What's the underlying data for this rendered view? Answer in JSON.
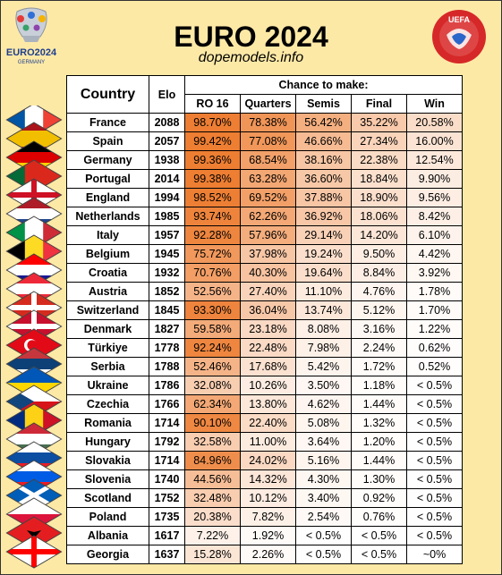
{
  "header": {
    "title": "EURO 2024",
    "site": "dopemodels.info",
    "logo_text": "EURO2024",
    "logo_sub": "GERMANY",
    "uefa_text": "UEFA"
  },
  "table": {
    "col_country": "Country",
    "col_elo": "Elo",
    "group_header": "Chance to make:",
    "stage_headers": [
      "RO 16",
      "Quarters",
      "Semis",
      "Final",
      "Win"
    ]
  },
  "colors": {
    "background": "#fde9a6",
    "heat_high": "#ed7d31",
    "heat_low": "#ffffff"
  },
  "chart_data": {
    "type": "table",
    "title": "EURO 2024",
    "columns": [
      "Country",
      "Elo",
      "RO 16",
      "Quarters",
      "Semis",
      "Final",
      "Win"
    ],
    "rows": [
      {
        "country": "France",
        "flag": "france-flag-icon",
        "elo": "2088",
        "values": [
          "98.70%",
          "78.38%",
          "56.42%",
          "35.22%",
          "20.58%"
        ],
        "numeric": [
          98.7,
          78.38,
          56.42,
          35.22,
          20.58
        ]
      },
      {
        "country": "Spain",
        "flag": "spain-flag-icon",
        "elo": "2057",
        "values": [
          "99.42%",
          "77.08%",
          "46.66%",
          "27.34%",
          "16.00%"
        ],
        "numeric": [
          99.42,
          77.08,
          46.66,
          27.34,
          16.0
        ]
      },
      {
        "country": "Germany",
        "flag": "germany-flag-icon",
        "elo": "1938",
        "values": [
          "99.36%",
          "68.54%",
          "38.16%",
          "22.38%",
          "12.54%"
        ],
        "numeric": [
          99.36,
          68.54,
          38.16,
          22.38,
          12.54
        ]
      },
      {
        "country": "Portugal",
        "flag": "portugal-flag-icon",
        "elo": "2014",
        "values": [
          "99.38%",
          "63.28%",
          "36.60%",
          "18.84%",
          "9.90%"
        ],
        "numeric": [
          99.38,
          63.28,
          36.6,
          18.84,
          9.9
        ]
      },
      {
        "country": "England",
        "flag": "england-flag-icon",
        "elo": "1994",
        "values": [
          "98.52%",
          "69.52%",
          "37.88%",
          "18.90%",
          "9.56%"
        ],
        "numeric": [
          98.52,
          69.52,
          37.88,
          18.9,
          9.56
        ]
      },
      {
        "country": "Netherlands",
        "flag": "netherlands-flag-icon",
        "elo": "1985",
        "values": [
          "93.74%",
          "62.26%",
          "36.92%",
          "18.06%",
          "8.42%"
        ],
        "numeric": [
          93.74,
          62.26,
          36.92,
          18.06,
          8.42
        ]
      },
      {
        "country": "Italy",
        "flag": "italy-flag-icon",
        "elo": "1957",
        "values": [
          "92.28%",
          "57.96%",
          "29.14%",
          "14.20%",
          "6.10%"
        ],
        "numeric": [
          92.28,
          57.96,
          29.14,
          14.2,
          6.1
        ]
      },
      {
        "country": "Belgium",
        "flag": "belgium-flag-icon",
        "elo": "1945",
        "values": [
          "75.72%",
          "37.98%",
          "19.24%",
          "9.50%",
          "4.42%"
        ],
        "numeric": [
          75.72,
          37.98,
          19.24,
          9.5,
          4.42
        ]
      },
      {
        "country": "Croatia",
        "flag": "croatia-flag-icon",
        "elo": "1932",
        "values": [
          "70.76%",
          "40.30%",
          "19.64%",
          "8.84%",
          "3.92%"
        ],
        "numeric": [
          70.76,
          40.3,
          19.64,
          8.84,
          3.92
        ]
      },
      {
        "country": "Austria",
        "flag": "austria-flag-icon",
        "elo": "1852",
        "values": [
          "52.56%",
          "27.40%",
          "11.10%",
          "4.76%",
          "1.78%"
        ],
        "numeric": [
          52.56,
          27.4,
          11.1,
          4.76,
          1.78
        ]
      },
      {
        "country": "Switzerland",
        "flag": "switzerland-flag-icon",
        "elo": "1845",
        "values": [
          "93.30%",
          "36.04%",
          "13.74%",
          "5.12%",
          "1.70%"
        ],
        "numeric": [
          93.3,
          36.04,
          13.74,
          5.12,
          1.7
        ]
      },
      {
        "country": "Denmark",
        "flag": "denmark-flag-icon",
        "elo": "1827",
        "values": [
          "59.58%",
          "23.18%",
          "8.08%",
          "3.16%",
          "1.22%"
        ],
        "numeric": [
          59.58,
          23.18,
          8.08,
          3.16,
          1.22
        ]
      },
      {
        "country": "Türkiye",
        "flag": "turkiye-flag-icon",
        "elo": "1778",
        "values": [
          "92.24%",
          "22.48%",
          "7.98%",
          "2.24%",
          "0.62%"
        ],
        "numeric": [
          92.24,
          22.48,
          7.98,
          2.24,
          0.62
        ]
      },
      {
        "country": "Serbia",
        "flag": "serbia-flag-icon",
        "elo": "1788",
        "values": [
          "52.46%",
          "17.68%",
          "5.42%",
          "1.72%",
          "0.52%"
        ],
        "numeric": [
          52.46,
          17.68,
          5.42,
          1.72,
          0.52
        ]
      },
      {
        "country": "Ukraine",
        "flag": "ukraine-flag-icon",
        "elo": "1786",
        "values": [
          "32.08%",
          "10.26%",
          "3.50%",
          "1.18%",
          "< 0.5%"
        ],
        "numeric": [
          32.08,
          10.26,
          3.5,
          1.18,
          0.3
        ]
      },
      {
        "country": "Czechia",
        "flag": "czechia-flag-icon",
        "elo": "1766",
        "values": [
          "62.34%",
          "13.80%",
          "4.62%",
          "1.44%",
          "< 0.5%"
        ],
        "numeric": [
          62.34,
          13.8,
          4.62,
          1.44,
          0.3
        ]
      },
      {
        "country": "Romania",
        "flag": "romania-flag-icon",
        "elo": "1714",
        "values": [
          "90.10%",
          "22.40%",
          "5.08%",
          "1.32%",
          "< 0.5%"
        ],
        "numeric": [
          90.1,
          22.4,
          5.08,
          1.32,
          0.3
        ]
      },
      {
        "country": "Hungary",
        "flag": "hungary-flag-icon",
        "elo": "1792",
        "values": [
          "32.58%",
          "11.00%",
          "3.64%",
          "1.20%",
          "< 0.5%"
        ],
        "numeric": [
          32.58,
          11.0,
          3.64,
          1.2,
          0.3
        ]
      },
      {
        "country": "Slovakia",
        "flag": "slovakia-flag-icon",
        "elo": "1714",
        "values": [
          "84.96%",
          "24.02%",
          "5.16%",
          "1.44%",
          "< 0.5%"
        ],
        "numeric": [
          84.96,
          24.02,
          5.16,
          1.44,
          0.3
        ]
      },
      {
        "country": "Slovenia",
        "flag": "slovenia-flag-icon",
        "elo": "1740",
        "values": [
          "44.56%",
          "14.32%",
          "4.30%",
          "1.30%",
          "< 0.5%"
        ],
        "numeric": [
          44.56,
          14.32,
          4.3,
          1.3,
          0.3
        ]
      },
      {
        "country": "Scotland",
        "flag": "scotland-flag-icon",
        "elo": "1752",
        "values": [
          "32.48%",
          "10.12%",
          "3.40%",
          "0.92%",
          "< 0.5%"
        ],
        "numeric": [
          32.48,
          10.12,
          3.4,
          0.92,
          0.3
        ]
      },
      {
        "country": "Poland",
        "flag": "poland-flag-icon",
        "elo": "1735",
        "values": [
          "20.38%",
          "7.82%",
          "2.54%",
          "0.76%",
          "< 0.5%"
        ],
        "numeric": [
          20.38,
          7.82,
          2.54,
          0.76,
          0.3
        ]
      },
      {
        "country": "Albania",
        "flag": "albania-flag-icon",
        "elo": "1617",
        "values": [
          "7.22%",
          "1.92%",
          "< 0.5%",
          "< 0.5%",
          "< 0.5%"
        ],
        "numeric": [
          7.22,
          1.92,
          0.3,
          0.3,
          0.3
        ]
      },
      {
        "country": "Georgia",
        "flag": "georgia-flag-icon",
        "elo": "1637",
        "values": [
          "15.28%",
          "2.26%",
          "< 0.5%",
          "< 0.5%",
          "~0%"
        ],
        "numeric": [
          15.28,
          2.26,
          0.3,
          0.3,
          0
        ]
      }
    ]
  }
}
